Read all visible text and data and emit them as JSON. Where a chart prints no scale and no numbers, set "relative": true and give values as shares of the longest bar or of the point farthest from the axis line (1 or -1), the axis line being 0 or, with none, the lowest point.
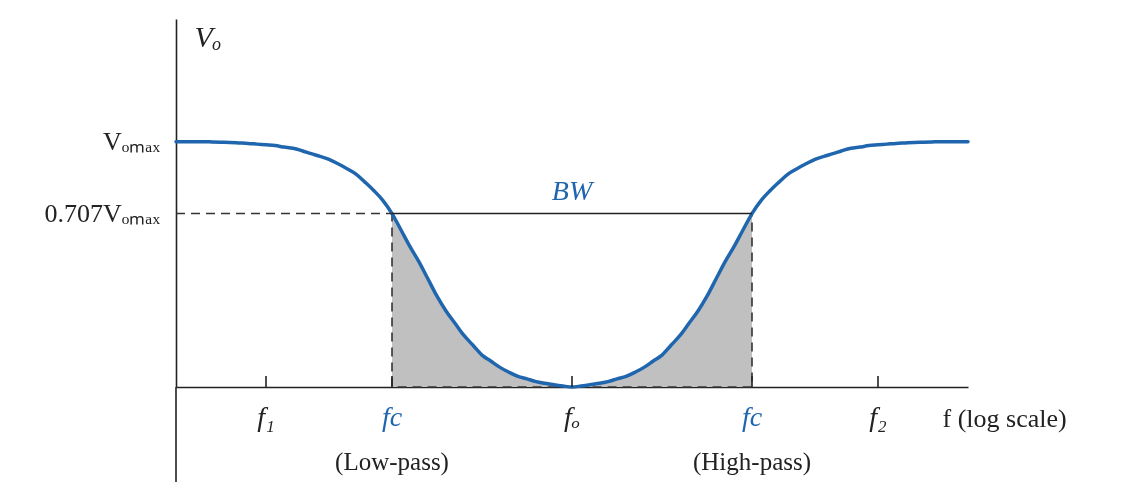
{
  "chart_data": {
    "type": "line",
    "relative": true,
    "xlabel": "f (log scale)",
    "ylabel": "Vₒ",
    "annotations": [
      "Vₒₘₐₓ",
      {
        "text": "BW",
        "x": "fₒ",
        "y": 0.707
      }
    ],
    "categories": [
      null,
      null,
      null,
      null,
      null,
      null,
      null,
      null,
      null,
      null,
      "f₁",
      null,
      null,
      null,
      null,
      null,
      null,
      null,
      null,
      null,
      null,
      null,
      null,
      null,
      "fc\n(Low-pass)",
      null,
      null,
      null,
      null,
      null,
      null,
      null,
      null,
      null,
      null,
      null,
      null,
      null,
      null,
      null,
      null,
      null,
      null,
      null,
      "fₒ",
      null,
      null,
      null,
      null,
      null,
      null,
      null,
      null,
      null,
      null,
      null,
      null,
      null,
      null,
      null,
      null,
      null,
      null,
      null,
      "fc\n(High-pass)",
      null,
      null,
      null,
      null,
      null,
      null,
      null,
      null,
      null,
      null,
      null,
      null,
      null,
      "f₂",
      null,
      null,
      null,
      null,
      null,
      null,
      null,
      null,
      null,
      null
    ],
    "series": [
      {
        "type": "area",
        "color": "#c0c0c0",
        "line_style": "dashed",
        "values": [
          null,
          null,
          null,
          null,
          null,
          null,
          null,
          null,
          null,
          null,
          null,
          null,
          null,
          null,
          null,
          null,
          null,
          null,
          null,
          null,
          null,
          null,
          null,
          null,
          0.707,
          0.64,
          0.572,
          0.51,
          0.44,
          0.37,
          0.31,
          0.26,
          0.21,
          0.17,
          0.13,
          0.105,
          0.08,
          0.06,
          0.043,
          0.033,
          0.022,
          0.015,
          0.009,
          0.004,
          0,
          0.004,
          0.009,
          0.015,
          0.022,
          0.033,
          0.043,
          0.06,
          0.08,
          0.105,
          0.13,
          0.17,
          0.21,
          0.26,
          0.31,
          0.37,
          0.44,
          0.51,
          0.572,
          0.64,
          0.707,
          null,
          null,
          null,
          null,
          null,
          null,
          null,
          null,
          null,
          null,
          null,
          null,
          null,
          null,
          null,
          null,
          null,
          null,
          null,
          null,
          null,
          null,
          null,
          null
        ]
      },
      {
        "color": "#1f66ae",
        "values": [
          1,
          1,
          1,
          1,
          0.999,
          0.998,
          0.997,
          0.995,
          0.993,
          0.99,
          0.987,
          0.984,
          0.978,
          0.973,
          0.963,
          0.951,
          0.94,
          0.928,
          0.91,
          0.89,
          0.868,
          0.835,
          0.8,
          0.76,
          0.707,
          0.64,
          0.572,
          0.51,
          0.44,
          0.37,
          0.31,
          0.26,
          0.21,
          0.17,
          0.13,
          0.105,
          0.08,
          0.06,
          0.043,
          0.033,
          0.022,
          0.015,
          0.009,
          0.004,
          0,
          0.004,
          0.009,
          0.015,
          0.022,
          0.033,
          0.043,
          0.06,
          0.08,
          0.105,
          0.13,
          0.17,
          0.21,
          0.26,
          0.31,
          0.37,
          0.44,
          0.51,
          0.572,
          0.64,
          0.707,
          0.76,
          0.8,
          0.835,
          0.868,
          0.89,
          0.91,
          0.928,
          0.94,
          0.951,
          0.963,
          0.973,
          0.978,
          0.984,
          0.987,
          0.99,
          0.993,
          0.995,
          0.997,
          0.998,
          0.999,
          1,
          1,
          1,
          1
        ]
      }
    ],
    "ref_lines": [
      {
        "axis": "y",
        "value": 0.707,
        "label": "0.707Vₒₘₐₓ",
        "line_style": "dashed",
        "color": "#333333"
      }
    ]
  }
}
